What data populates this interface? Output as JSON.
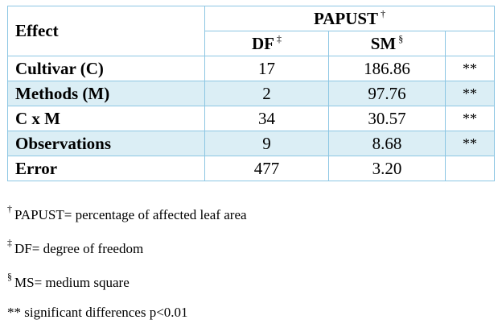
{
  "table": {
    "effect_header": "Effect",
    "group_header": "PAPUST",
    "group_mark": "†",
    "df_header": "DF",
    "df_mark": "‡",
    "sm_header": "SM",
    "sm_mark": "§",
    "rows": [
      {
        "effect": "Cultivar (C)",
        "df": "17",
        "sm": "186.86",
        "sig": "**"
      },
      {
        "effect": "Methods (M)",
        "df": "2",
        "sm": "97.76",
        "sig": "**"
      },
      {
        "effect": "C x M",
        "df": "34",
        "sm": "30.57",
        "sig": "**"
      },
      {
        "effect": "Observations",
        "df": "9",
        "sm": "8.68",
        "sig": "**"
      },
      {
        "effect": "Error",
        "df": "477",
        "sm": "3.20",
        "sig": ""
      }
    ],
    "shade_color": "#dbeef5",
    "border_color": "#8cc6e3"
  },
  "footnotes": [
    {
      "mark": "†",
      "text": "PAPUST= percentage of affected leaf area"
    },
    {
      "mark": "‡",
      "text": "DF= degree of freedom"
    },
    {
      "mark": "§",
      "text": "MS= medium square"
    },
    {
      "mark": "",
      "text": "** significant differences p<0.01"
    }
  ]
}
